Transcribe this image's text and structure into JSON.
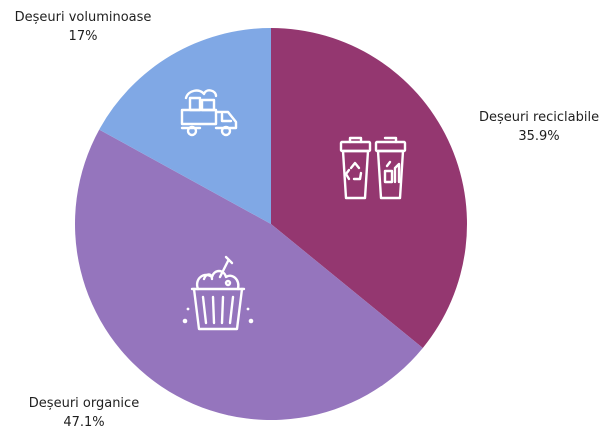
{
  "chart_data": {
    "type": "pie",
    "slices": [
      {
        "label": "Deșeuri reciclabile",
        "value": 35.9,
        "value_label": "35.9%",
        "color": "#943770",
        "icon": "recycling-bins-icon"
      },
      {
        "label": "Deșeuri organice",
        "value": 47.1,
        "value_label": "47.1%",
        "color": "#9575bd",
        "icon": "organic-waste-bin-icon"
      },
      {
        "label": "Deșeuri voluminoase",
        "value": 17,
        "value_label": "17%",
        "color": "#80a8e5",
        "icon": "bulky-waste-truck-icon"
      }
    ],
    "start_angle": "top",
    "direction": "clockwise",
    "legend": "none"
  }
}
